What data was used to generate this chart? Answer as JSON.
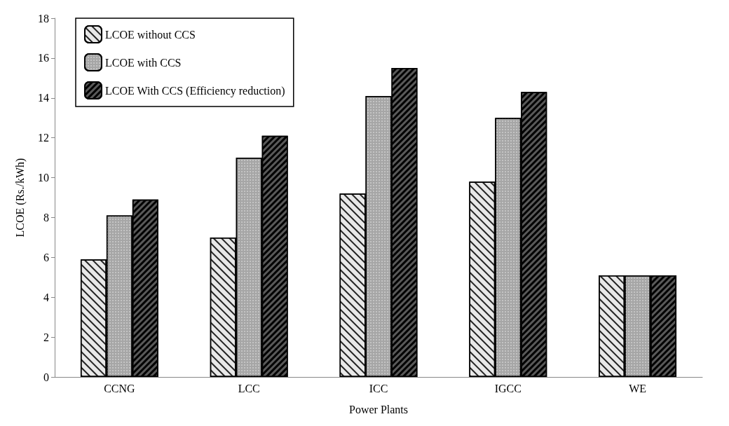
{
  "chart_data": {
    "type": "bar",
    "xlabel": "Power Plants",
    "ylabel": "LCOE (Rs./kWh)",
    "categories": [
      "CCNG",
      "LCC",
      "ICC",
      "IGCC",
      "WE"
    ],
    "series": [
      {
        "name": "LCOE without CCS",
        "color": "#e8e8e8",
        "values": [
          5.9,
          7.0,
          9.2,
          9.8,
          5.1
        ]
      },
      {
        "name": "LCOE with CCS",
        "color": "#a6a6a6",
        "values": [
          8.1,
          11.0,
          14.1,
          13.0,
          5.1
        ]
      },
      {
        "name": "LCOE With CCS (Efficiency reduction)",
        "color": "#595959",
        "values": [
          8.9,
          12.1,
          15.5,
          14.3,
          5.1
        ]
      }
    ],
    "ylim": [
      0,
      18
    ],
    "yticks": [
      0,
      2,
      4,
      6,
      8,
      10,
      12,
      14,
      16,
      18
    ],
    "grid": false,
    "legend": "top left"
  }
}
